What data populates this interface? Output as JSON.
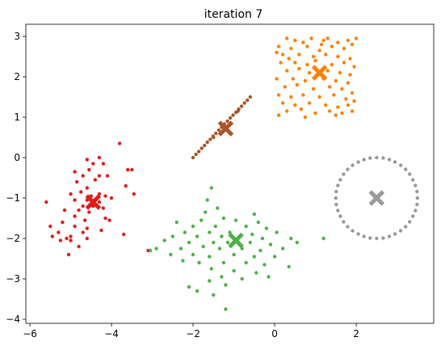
{
  "chart_data": {
    "type": "scatter",
    "title": "iteration 7",
    "xlabel": "",
    "ylabel": "",
    "xlim": [
      -6.1,
      3.9
    ],
    "ylim": [
      -4.1,
      3.3
    ],
    "x_ticks": [
      -6,
      -4,
      -2,
      0,
      2
    ],
    "y_ticks": [
      -4,
      -3,
      -2,
      -1,
      0,
      1,
      2,
      3
    ],
    "x_tick_labels": [
      "−6",
      "−4",
      "−2",
      "0",
      "2"
    ],
    "y_tick_labels": [
      "−4",
      "−3",
      "−2",
      "−1",
      "0",
      "1",
      "2",
      "3"
    ],
    "grid": false,
    "clusters": [
      {
        "color": "#e41a1c",
        "centroid": [
          -4.45,
          -1.1
        ],
        "points": [
          [
            -3.8,
            0.35
          ],
          [
            -4.3,
            0.0
          ],
          [
            -4.6,
            -0.05
          ],
          [
            -4.45,
            -0.15
          ],
          [
            -4.2,
            -0.15
          ],
          [
            -3.5,
            -0.3
          ],
          [
            -4.9,
            -0.35
          ],
          [
            -4.55,
            -0.3
          ],
          [
            -3.6,
            -0.3
          ],
          [
            -4.7,
            -0.45
          ],
          [
            -4.3,
            -0.45
          ],
          [
            -4.85,
            -0.6
          ],
          [
            -4.4,
            -0.55
          ],
          [
            -4.1,
            -0.45
          ],
          [
            -4.6,
            -0.75
          ],
          [
            -3.65,
            -0.7
          ],
          [
            -4.75,
            -0.85
          ],
          [
            -4.3,
            -0.9
          ],
          [
            -5.0,
            -0.9
          ],
          [
            -3.45,
            -0.9
          ],
          [
            -4.5,
            -0.95
          ],
          [
            -4.15,
            -0.95
          ],
          [
            -4.9,
            -1.05
          ],
          [
            -5.6,
            -1.1
          ],
          [
            -4.6,
            -1.05
          ],
          [
            -4.3,
            -1.1
          ],
          [
            -4.0,
            -1.0
          ],
          [
            -4.45,
            -1.2
          ],
          [
            -4.7,
            -1.2
          ],
          [
            -4.2,
            -1.25
          ],
          [
            -5.15,
            -1.3
          ],
          [
            -4.8,
            -1.3
          ],
          [
            -4.55,
            -1.35
          ],
          [
            -4.9,
            -1.45
          ],
          [
            -4.15,
            -1.5
          ],
          [
            -4.65,
            -1.55
          ],
          [
            -4.05,
            -1.55
          ],
          [
            -5.2,
            -1.6
          ],
          [
            -5.5,
            -1.7
          ],
          [
            -4.9,
            -1.7
          ],
          [
            -4.6,
            -1.75
          ],
          [
            -5.3,
            -1.85
          ],
          [
            -4.7,
            -1.85
          ],
          [
            -4.25,
            -1.8
          ],
          [
            -5.0,
            -1.95
          ],
          [
            -5.45,
            -1.95
          ],
          [
            -3.7,
            -1.9
          ],
          [
            -5.1,
            -2.0
          ],
          [
            -5.25,
            -2.05
          ],
          [
            -5.0,
            -2.05
          ],
          [
            -4.6,
            -2.0
          ],
          [
            -4.8,
            -2.2
          ],
          [
            -3.1,
            -2.3
          ],
          [
            -5.05,
            -2.4
          ]
        ]
      },
      {
        "color": "#ff7f00",
        "centroid": [
          1.1,
          2.1
        ],
        "points": [
          [
            0.3,
            2.95
          ],
          [
            0.5,
            2.9
          ],
          [
            0.7,
            2.85
          ],
          [
            0.9,
            2.95
          ],
          [
            1.2,
            2.9
          ],
          [
            1.3,
            2.95
          ],
          [
            1.55,
            2.85
          ],
          [
            1.8,
            2.9
          ],
          [
            2.0,
            2.95
          ],
          [
            0.1,
            2.75
          ],
          [
            0.4,
            2.7
          ],
          [
            0.8,
            2.75
          ],
          [
            1.1,
            2.65
          ],
          [
            1.4,
            2.75
          ],
          [
            1.7,
            2.7
          ],
          [
            1.9,
            2.8
          ],
          [
            0.2,
            2.55
          ],
          [
            0.6,
            2.55
          ],
          [
            0.95,
            2.5
          ],
          [
            1.25,
            2.55
          ],
          [
            1.55,
            2.5
          ],
          [
            1.85,
            2.45
          ],
          [
            0.15,
            2.35
          ],
          [
            0.5,
            2.35
          ],
          [
            0.8,
            2.3
          ],
          [
            1.0,
            2.4
          ],
          [
            1.4,
            2.3
          ],
          [
            1.7,
            2.35
          ],
          [
            1.95,
            2.25
          ],
          [
            0.3,
            2.15
          ],
          [
            0.6,
            2.2
          ],
          [
            0.85,
            2.1
          ],
          [
            1.3,
            2.15
          ],
          [
            1.6,
            2.1
          ],
          [
            1.85,
            2.05
          ],
          [
            0.05,
            1.95
          ],
          [
            0.45,
            1.95
          ],
          [
            0.75,
            1.9
          ],
          [
            1.2,
            1.95
          ],
          [
            1.5,
            1.9
          ],
          [
            1.8,
            1.85
          ],
          [
            0.25,
            1.75
          ],
          [
            0.55,
            1.8
          ],
          [
            0.95,
            1.7
          ],
          [
            1.35,
            1.75
          ],
          [
            1.65,
            1.7
          ],
          [
            1.9,
            1.6
          ],
          [
            0.1,
            1.55
          ],
          [
            0.4,
            1.5
          ],
          [
            0.7,
            1.55
          ],
          [
            1.1,
            1.5
          ],
          [
            1.45,
            1.55
          ],
          [
            1.75,
            1.45
          ],
          [
            0.2,
            1.35
          ],
          [
            0.5,
            1.3
          ],
          [
            0.85,
            1.35
          ],
          [
            1.25,
            1.3
          ],
          [
            1.55,
            1.25
          ],
          [
            1.8,
            1.3
          ],
          [
            0.3,
            1.15
          ],
          [
            0.65,
            1.2
          ],
          [
            1.0,
            1.1
          ],
          [
            1.35,
            1.15
          ],
          [
            1.65,
            1.1
          ],
          [
            1.9,
            1.15
          ],
          [
            0.1,
            1.05
          ],
          [
            0.75,
            1.0
          ],
          [
            1.5,
            1.05
          ],
          [
            1.95,
            1.4
          ],
          [
            0.35,
            2.45
          ],
          [
            1.15,
            2.8
          ],
          [
            0.05,
            2.6
          ]
        ]
      },
      {
        "color": "#a65628",
        "centroid": [
          -1.2,
          0.72
        ],
        "points": [
          [
            -2.0,
            0.0
          ],
          [
            -1.93,
            0.08
          ],
          [
            -1.86,
            0.15
          ],
          [
            -1.79,
            0.23
          ],
          [
            -1.72,
            0.3
          ],
          [
            -1.65,
            0.38
          ],
          [
            -1.58,
            0.45
          ],
          [
            -1.51,
            0.53
          ],
          [
            -1.44,
            0.6
          ],
          [
            -1.37,
            0.68
          ],
          [
            -1.3,
            0.75
          ],
          [
            -1.23,
            0.83
          ],
          [
            -1.16,
            0.9
          ],
          [
            -1.09,
            0.98
          ],
          [
            -1.02,
            1.05
          ],
          [
            -0.95,
            1.12
          ],
          [
            -0.88,
            1.2
          ],
          [
            -0.81,
            1.27
          ],
          [
            -0.74,
            1.35
          ],
          [
            -0.67,
            1.42
          ],
          [
            -0.6,
            1.5
          ],
          [
            -0.9,
            1.15
          ],
          [
            -1.5,
            0.5
          ]
        ]
      },
      {
        "color": "#4daf4a",
        "centroid": [
          -0.95,
          -2.05
        ],
        "points": [
          [
            -1.55,
            -0.75
          ],
          [
            -1.65,
            -1.05
          ],
          [
            -1.4,
            -1.25
          ],
          [
            -0.5,
            -1.4
          ],
          [
            -1.7,
            -1.35
          ],
          [
            -1.25,
            -1.5
          ],
          [
            -0.95,
            -1.55
          ],
          [
            -2.4,
            -1.6
          ],
          [
            -0.4,
            -1.6
          ],
          [
            -1.8,
            -1.55
          ],
          [
            -2.0,
            -1.7
          ],
          [
            -1.45,
            -1.7
          ],
          [
            -0.7,
            -1.7
          ],
          [
            -0.2,
            -1.75
          ],
          [
            -2.2,
            -1.85
          ],
          [
            -1.6,
            -1.85
          ],
          [
            -1.1,
            -1.85
          ],
          [
            -0.55,
            -1.9
          ],
          [
            0.05,
            -1.85
          ],
          [
            -2.5,
            -1.95
          ],
          [
            -1.9,
            -1.95
          ],
          [
            -1.3,
            -1.95
          ],
          [
            -0.85,
            -1.95
          ],
          [
            -0.3,
            -2.0
          ],
          [
            0.4,
            -2.0
          ],
          [
            -2.7,
            -2.05
          ],
          [
            -2.1,
            -2.1
          ],
          [
            -1.5,
            -2.1
          ],
          [
            -1.15,
            -2.1
          ],
          [
            -0.6,
            -2.1
          ],
          [
            -0.1,
            -2.15
          ],
          [
            0.55,
            -2.1
          ],
          [
            -2.9,
            -2.25
          ],
          [
            -2.3,
            -2.25
          ],
          [
            -1.75,
            -2.2
          ],
          [
            -1.35,
            -2.25
          ],
          [
            -0.8,
            -2.25
          ],
          [
            -0.35,
            -2.3
          ],
          [
            0.2,
            -2.25
          ],
          [
            -2.55,
            -2.4
          ],
          [
            -2.0,
            -2.4
          ],
          [
            -1.6,
            -2.45
          ],
          [
            -1.0,
            -2.4
          ],
          [
            -0.5,
            -2.45
          ],
          [
            0.0,
            -2.45
          ],
          [
            -2.25,
            -2.55
          ],
          [
            -1.85,
            -2.6
          ],
          [
            -1.25,
            -2.6
          ],
          [
            -0.7,
            -2.6
          ],
          [
            -0.25,
            -2.65
          ],
          [
            0.35,
            -2.7
          ],
          [
            -1.55,
            -2.75
          ],
          [
            -1.0,
            -2.8
          ],
          [
            -0.45,
            -2.85
          ],
          [
            -1.3,
            -2.95
          ],
          [
            -0.8,
            -3.0
          ],
          [
            -1.6,
            -3.05
          ],
          [
            -1.2,
            -3.15
          ],
          [
            -2.1,
            -3.2
          ],
          [
            -1.9,
            -3.3
          ],
          [
            -1.5,
            -3.4
          ],
          [
            -1.2,
            -3.75
          ],
          [
            1.2,
            -2.0
          ],
          [
            -3.05,
            -2.3
          ],
          [
            -0.15,
            -2.95
          ]
        ]
      },
      {
        "color": "#999999",
        "centroid": [
          2.5,
          -1.0
        ],
        "points": [
          [
            3.5,
            -1.0
          ],
          [
            3.49,
            -0.84
          ],
          [
            3.45,
            -0.69
          ],
          [
            3.39,
            -0.55
          ],
          [
            3.31,
            -0.41
          ],
          [
            3.21,
            -0.29
          ],
          [
            3.09,
            -0.19
          ],
          [
            2.95,
            -0.11
          ],
          [
            2.81,
            -0.05
          ],
          [
            2.66,
            -0.01
          ],
          [
            2.5,
            0.0
          ],
          [
            2.34,
            -0.01
          ],
          [
            2.19,
            -0.05
          ],
          [
            2.05,
            -0.11
          ],
          [
            1.91,
            -0.19
          ],
          [
            1.79,
            -0.29
          ],
          [
            1.69,
            -0.41
          ],
          [
            1.61,
            -0.55
          ],
          [
            1.55,
            -0.69
          ],
          [
            1.51,
            -0.84
          ],
          [
            1.5,
            -1.0
          ],
          [
            1.51,
            -1.16
          ],
          [
            1.55,
            -1.31
          ],
          [
            1.61,
            -1.45
          ],
          [
            1.69,
            -1.59
          ],
          [
            1.79,
            -1.71
          ],
          [
            1.91,
            -1.81
          ],
          [
            2.05,
            -1.89
          ],
          [
            2.19,
            -1.95
          ],
          [
            2.34,
            -1.99
          ],
          [
            2.5,
            -2.0
          ],
          [
            2.66,
            -1.99
          ],
          [
            2.81,
            -1.95
          ],
          [
            2.95,
            -1.89
          ],
          [
            3.09,
            -1.81
          ],
          [
            3.21,
            -1.71
          ],
          [
            3.31,
            -1.59
          ],
          [
            3.39,
            -1.45
          ],
          [
            3.45,
            -1.31
          ],
          [
            3.49,
            -1.16
          ]
        ]
      }
    ]
  }
}
